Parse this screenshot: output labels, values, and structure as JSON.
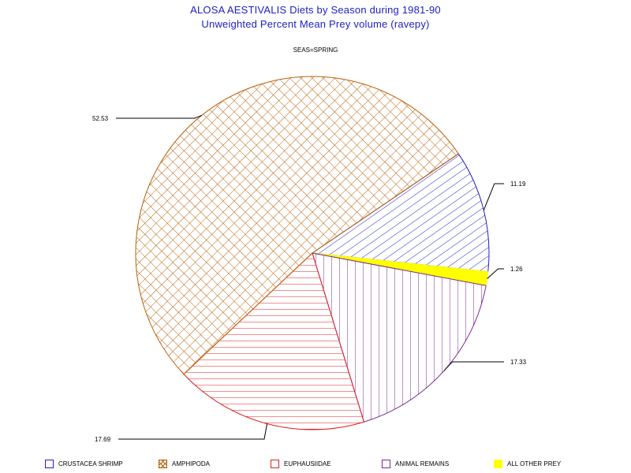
{
  "chart_data": {
    "type": "pie",
    "title": "ALOSA AESTIVALIS Diets by Season during 1981-90",
    "subtitle": "Unweighted Percent Mean Prey volume (ravepy)",
    "panel_label": "SEAS=SPRING",
    "slices": [
      {
        "name": "CRUSTACEA SHRIMP",
        "value": 11.19,
        "label": "11.19",
        "color": "#2020c8",
        "pattern": "diagonal"
      },
      {
        "name": "ALL OTHER PREY",
        "value": 1.26,
        "label": "1.26",
        "color": "#ffff00",
        "pattern": "solid"
      },
      {
        "name": "ANIMAL REMAINS",
        "value": 17.33,
        "label": "17.33",
        "color": "#7a2a9a",
        "pattern": "vertical"
      },
      {
        "name": "EUPHAUSIIDAE",
        "value": 17.69,
        "label": "17.69",
        "color": "#e02020",
        "pattern": "horizontal"
      },
      {
        "name": "AMPHIPODA",
        "value": 52.53,
        "label": "52.53",
        "color": "#b8600a",
        "pattern": "crosshatch"
      }
    ],
    "legend": [
      "CRUSTACEA SHRIMP",
      "AMPHIPODA",
      "EUPHAUSIIDAE",
      "ANIMAL REMAINS",
      "ALL OTHER PREY"
    ],
    "legend_position": "bottom"
  }
}
